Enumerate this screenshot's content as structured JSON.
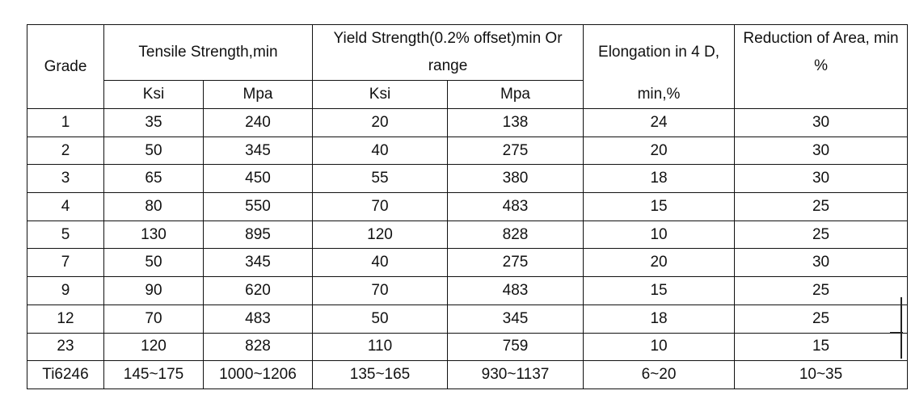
{
  "headers": {
    "grade": "Grade",
    "tensile": "Tensile Strength,min",
    "yield": "Yield Strength(0.2% offset)min Or range",
    "elongation_top": "Elongation in 4 D,",
    "elongation_bottom": "min,%",
    "reduction": "Reduction of Area, min %",
    "ksi_1": "Ksi",
    "mpa_1": "Mpa",
    "ksi_2": "Ksi",
    "mpa_2": "Mpa"
  },
  "rows": [
    {
      "grade": "1",
      "tensile_ksi": "35",
      "tensile_mpa": "240",
      "yield_ksi": "20",
      "yield_mpa": "138",
      "elongation": "24",
      "reduction": "30"
    },
    {
      "grade": "2",
      "tensile_ksi": "50",
      "tensile_mpa": "345",
      "yield_ksi": "40",
      "yield_mpa": "275",
      "elongation": "20",
      "reduction": "30"
    },
    {
      "grade": "3",
      "tensile_ksi": "65",
      "tensile_mpa": "450",
      "yield_ksi": "55",
      "yield_mpa": "380",
      "elongation": "18",
      "reduction": "30"
    },
    {
      "grade": "4",
      "tensile_ksi": "80",
      "tensile_mpa": "550",
      "yield_ksi": "70",
      "yield_mpa": "483",
      "elongation": "15",
      "reduction": "25"
    },
    {
      "grade": "5",
      "tensile_ksi": "130",
      "tensile_mpa": "895",
      "yield_ksi": "120",
      "yield_mpa": "828",
      "elongation": "10",
      "reduction": "25"
    },
    {
      "grade": "7",
      "tensile_ksi": "50",
      "tensile_mpa": "345",
      "yield_ksi": "40",
      "yield_mpa": "275",
      "elongation": "20",
      "reduction": "30"
    },
    {
      "grade": "9",
      "tensile_ksi": "90",
      "tensile_mpa": "620",
      "yield_ksi": "70",
      "yield_mpa": "483",
      "elongation": "15",
      "reduction": "25"
    },
    {
      "grade": "12",
      "tensile_ksi": "70",
      "tensile_mpa": "483",
      "yield_ksi": "50",
      "yield_mpa": "345",
      "elongation": "18",
      "reduction": "25"
    },
    {
      "grade": "23",
      "tensile_ksi": "120",
      "tensile_mpa": "828",
      "yield_ksi": "110",
      "yield_mpa": "759",
      "elongation": "10",
      "reduction": "15"
    },
    {
      "grade": "Ti6246",
      "tensile_ksi": "145~175",
      "tensile_mpa": "1000~1206",
      "yield_ksi": "135~165",
      "yield_mpa": "930~1137",
      "elongation": "6~20",
      "reduction": "10~35"
    }
  ]
}
